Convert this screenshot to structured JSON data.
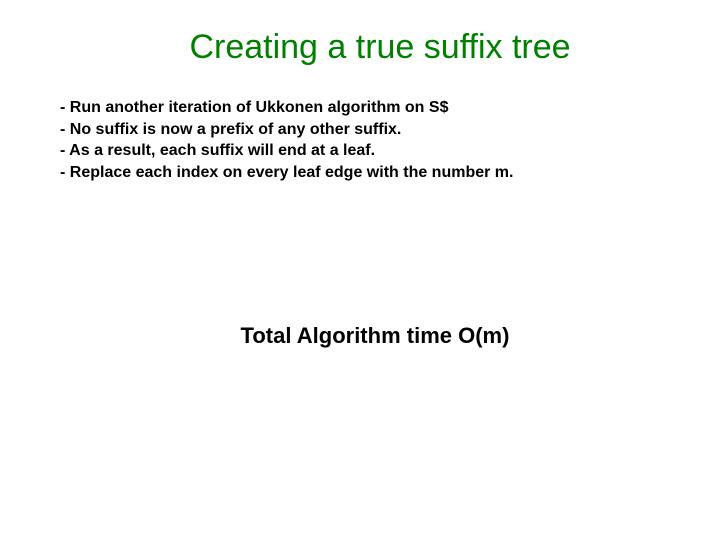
{
  "slide": {
    "title": "Creating a true suffix tree",
    "bullets": [
      "- Run another iteration of Ukkonen algorithm on S$",
      "- No suffix is now a prefix of any other suffix.",
      "- As a result, each suffix will end at a leaf.",
      "- Replace each index on every leaf edge with the number m."
    ],
    "conclusion": "Total Algorithm time O(m)"
  },
  "styling": {
    "background_color": "#ffffff",
    "title_color": "#008000",
    "title_fontsize": 34,
    "title_fontweight": "normal",
    "bullet_color": "#000000",
    "bullet_fontsize": 16,
    "bullet_fontweight": "bold",
    "conclusion_color": "#000000",
    "conclusion_fontsize": 22,
    "conclusion_fontweight": "bold",
    "font_family": "Arial"
  }
}
